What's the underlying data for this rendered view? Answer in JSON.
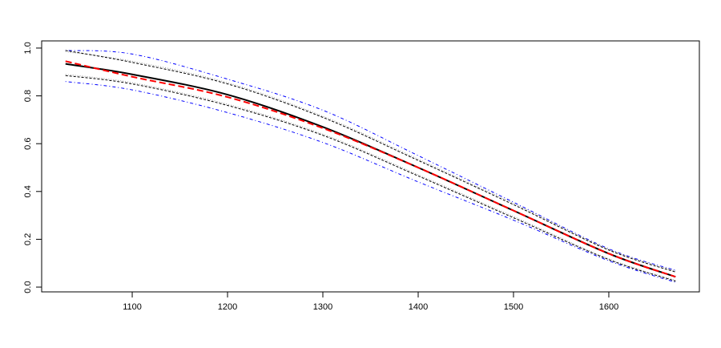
{
  "chart_data": {
    "type": "line",
    "title": "",
    "xlabel": "",
    "ylabel": "",
    "xlim": [
      1005,
      1695
    ],
    "ylim": [
      -0.02,
      1.03
    ],
    "x_ticks": [
      1100,
      1200,
      1300,
      1400,
      1500,
      1600
    ],
    "y_ticks": [
      "0.0",
      "0.2",
      "0.4",
      "0.6",
      "0.8",
      "1.0"
    ],
    "x": [
      1030,
      1100,
      1200,
      1300,
      1400,
      1500,
      1600,
      1670
    ],
    "series": [
      {
        "color": "#0000ff",
        "style": "dotdash",
        "width": 1,
        "values": [
          0.99,
          0.975,
          0.87,
          0.74,
          0.55,
          0.355,
          0.16,
          0.07
        ]
      },
      {
        "color": "#0000ff",
        "style": "dotdash",
        "width": 1,
        "values": [
          0.86,
          0.825,
          0.73,
          0.605,
          0.44,
          0.28,
          0.11,
          0.02
        ]
      },
      {
        "color": "#999999",
        "style": "dotted",
        "width": 1,
        "values": [
          0.985,
          0.945,
          0.855,
          0.715,
          0.535,
          0.35,
          0.158,
          0.067
        ]
      },
      {
        "color": "#999999",
        "style": "dotted",
        "width": 1,
        "values": [
          0.89,
          0.855,
          0.765,
          0.64,
          0.47,
          0.295,
          0.118,
          0.028
        ]
      },
      {
        "color": "#000000",
        "style": "dashed-fine",
        "width": 1,
        "values": [
          0.99,
          0.94,
          0.85,
          0.71,
          0.53,
          0.345,
          0.155,
          0.063
        ]
      },
      {
        "color": "#000000",
        "style": "dashed-fine",
        "width": 1,
        "values": [
          0.885,
          0.85,
          0.76,
          0.635,
          0.465,
          0.29,
          0.115,
          0.025
        ]
      },
      {
        "color": "#000000",
        "style": "solid",
        "width": 2,
        "values": [
          0.934,
          0.89,
          0.805,
          0.67,
          0.5,
          0.32,
          0.14,
          0.043
        ]
      },
      {
        "color": "#ff0000",
        "style": "dashed",
        "width": 2,
        "values": [
          0.945,
          0.88,
          0.795,
          0.665,
          0.5,
          0.32,
          0.14,
          0.043
        ]
      }
    ]
  }
}
